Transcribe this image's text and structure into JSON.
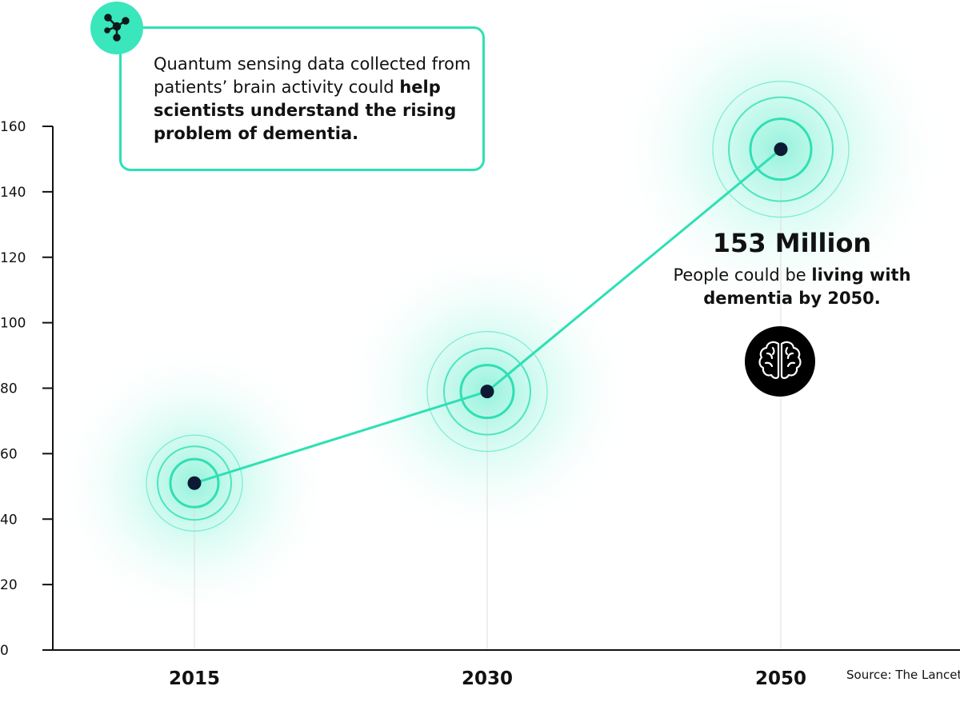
{
  "chart_data": {
    "type": "line",
    "categories": [
      "2015",
      "2030",
      "2050"
    ],
    "values": [
      51,
      79,
      153
    ],
    "ylim": [
      0,
      160
    ],
    "yticks": [
      0,
      20,
      40,
      60,
      80,
      100,
      120,
      140,
      160
    ],
    "ytick_labels": [
      "0",
      "20",
      "40",
      "60",
      "80",
      "100",
      "120",
      "140",
      "160"
    ],
    "grid": false,
    "title": "",
    "xlabel": "",
    "ylabel": ""
  },
  "colors": {
    "accent": "#2ee0b4",
    "glow": "#5ff0cc",
    "point": "#0d1a33"
  },
  "callout": {
    "icon": "network-molecule-icon",
    "text_regular": "Quantum sensing data collected from patients’ brain activity could ",
    "text_bold": "help scientists understand the rising problem of dementia."
  },
  "annotation": {
    "value": "153 Million",
    "text_regular": "People could be ",
    "text_bold": "living with dementia by 2050.",
    "icon": "brain-icon"
  },
  "source": "Source: The Lancet"
}
